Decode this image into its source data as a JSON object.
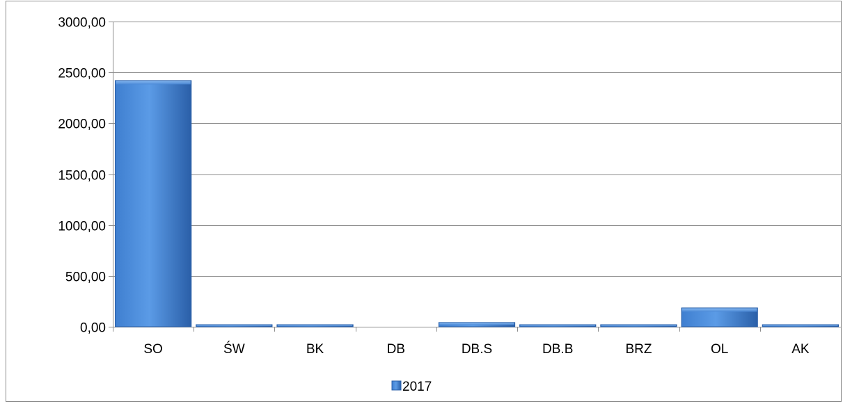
{
  "chart_data": {
    "type": "bar",
    "categories": [
      "SO",
      "ŚW",
      "BK",
      "DB",
      "DB.S",
      "DB.B",
      "BRZ",
      "OL",
      "AK"
    ],
    "series": [
      {
        "name": "2017",
        "values": [
          2420,
          12,
          8,
          0,
          42,
          7,
          18,
          185,
          12
        ],
        "color": "#3f7fd0"
      }
    ],
    "ylim": [
      0,
      3000
    ],
    "yticks": [
      0,
      500,
      1000,
      1500,
      2000,
      2500,
      3000
    ],
    "ytick_labels": [
      "0,00",
      "500,00",
      "1000,00",
      "1500,00",
      "2000,00",
      "2500,00",
      "3000,00"
    ],
    "grid": true,
    "legend_position": "bottom",
    "colors": {
      "bar_light": "#5b9be6",
      "bar_mid": "#3f7fd0",
      "bar_dark": "#2a5fa8",
      "grid": "#8c8c8c",
      "border": "#8c8c8c",
      "text": "#000000"
    }
  }
}
